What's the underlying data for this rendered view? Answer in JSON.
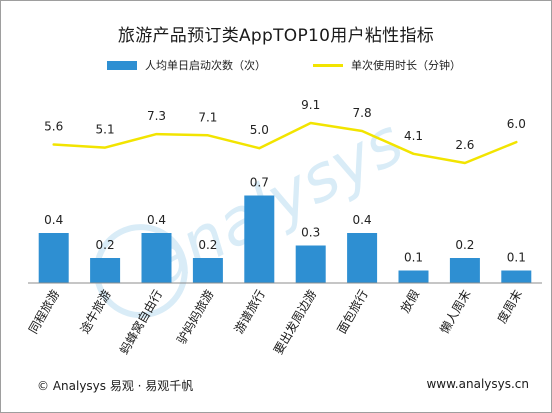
{
  "chart_data": {
    "type": "bar",
    "title": "旅游产品预订类AppTOP10用户粘性指标",
    "categories": [
      "同程旅游",
      "途牛旅游",
      "蚂蜂窝自由行",
      "驴妈妈旅游",
      "游谱旅行",
      "要出发周边游",
      "面包旅行",
      "放假",
      "懒人周末",
      "度周末"
    ],
    "series": [
      {
        "name": "人均单日启动次数（次）",
        "kind": "bar",
        "color": "#2e8fd2",
        "values": [
          0.4,
          0.2,
          0.4,
          0.2,
          0.7,
          0.3,
          0.4,
          0.1,
          0.2,
          0.1
        ],
        "labels": [
          "0.4",
          "0.2",
          "0.4",
          "0.2",
          "0.7",
          "0.3",
          "0.4",
          "0.1",
          "0.2",
          "0.1"
        ]
      },
      {
        "name": "单次使用时长（分钟）",
        "kind": "line",
        "color": "#f2e400",
        "values": [
          5.6,
          5.1,
          7.3,
          7.1,
          5.0,
          9.1,
          7.8,
          4.1,
          2.6,
          6.0
        ],
        "labels": [
          "5.6",
          "5.1",
          "7.3",
          "7.1",
          "5.0",
          "9.1",
          "7.8",
          "4.1",
          "2.6",
          "6.0"
        ]
      }
    ],
    "legend_position": "top",
    "grid": false
  },
  "watermark": {
    "text": "analysys",
    "color": "#d9ecf7"
  },
  "footer": {
    "left": "© Analysys 易观 · 易观千帆",
    "right": "www.analysys.cn"
  }
}
